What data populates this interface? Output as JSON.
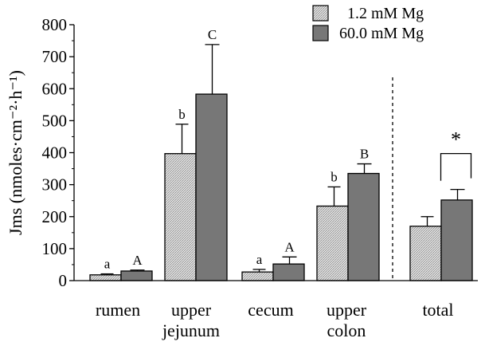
{
  "chart_data": {
    "type": "bar",
    "ylabel": "Jms (nmoles·cm⁻²·h⁻¹)",
    "ylim": [
      0,
      800
    ],
    "yticks": [
      0,
      100,
      200,
      300,
      400,
      500,
      600,
      700,
      800
    ],
    "grid": false,
    "legend_placement": "top-right",
    "categories": [
      {
        "label_lines": [
          "rumen"
        ]
      },
      {
        "label_lines": [
          "upper",
          "jejunum"
        ]
      },
      {
        "label_lines": [
          "cecum"
        ]
      },
      {
        "label_lines": [
          "upper",
          "colon"
        ]
      },
      {
        "label_lines": [
          "total"
        ]
      }
    ],
    "series": [
      {
        "name": "1.2 mM Mg",
        "color": "#d8d8d8",
        "fill_pattern": "hatched",
        "values": [
          18,
          397,
          27,
          233,
          170
        ],
        "errors": [
          3,
          92,
          8,
          60,
          30
        ],
        "labels": [
          "a",
          "b",
          "a",
          "b",
          ""
        ]
      },
      {
        "name": "60.0 mM Mg",
        "color": "#777777",
        "fill_pattern": "solid",
        "values": [
          30,
          583,
          52,
          335,
          252
        ],
        "errors": [
          3,
          155,
          22,
          30,
          33
        ],
        "labels": [
          "A",
          "C",
          "A",
          "B",
          ""
        ]
      }
    ],
    "separator_before_category": 4,
    "annotations": [
      {
        "category_index": 4,
        "type": "significance-bracket",
        "text": "*"
      }
    ]
  }
}
